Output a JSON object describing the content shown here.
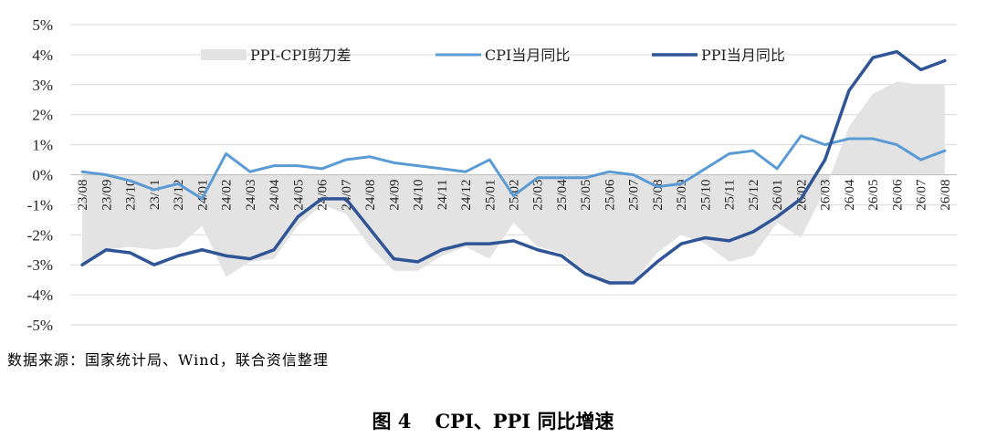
{
  "chart_data": {
    "type": "line",
    "categories": [
      "23/08",
      "23/09",
      "23/10",
      "23/11",
      "23/12",
      "24/01",
      "24/02",
      "24/03",
      "24/04",
      "24/05",
      "24/06",
      "24/07",
      "24/08",
      "24/09",
      "24/10",
      "24/11",
      "24/12",
      "25/01",
      "25/02",
      "25/03",
      "25/04",
      "25/05",
      "25/06",
      "25/07",
      "25/08",
      "25/09",
      "25/10",
      "25/11",
      "25/12",
      "26/01",
      "26/02",
      "26/03",
      "26/04",
      "26/05",
      "26/06",
      "26/07",
      "26/08"
    ],
    "series": [
      {
        "name": "PPI-CPI剪刀差",
        "kind": "area",
        "color": "#e3e3e3",
        "values": [
          -3.1,
          -2.5,
          -2.4,
          -2.5,
          -2.4,
          -1.7,
          -3.4,
          -2.9,
          -2.8,
          -1.7,
          -1.0,
          -1.3,
          -2.4,
          -3.2,
          -3.2,
          -2.7,
          -2.4,
          -2.8,
          -1.6,
          -2.4,
          -2.6,
          -3.2,
          -3.7,
          -3.6,
          -2.6,
          -2.0,
          -2.3,
          -2.9,
          -2.7,
          -1.6,
          -2.1,
          -0.5,
          1.6,
          2.7,
          3.1,
          3.0,
          3.0
        ]
      },
      {
        "name": "CPI当月同比",
        "kind": "line",
        "color": "#5b9bd5",
        "values": [
          0.1,
          0.0,
          -0.2,
          -0.5,
          -0.3,
          -0.8,
          0.7,
          0.1,
          0.3,
          0.3,
          0.2,
          0.5,
          0.6,
          0.4,
          0.3,
          0.2,
          0.1,
          0.5,
          -0.7,
          -0.1,
          -0.1,
          -0.1,
          0.1,
          0.0,
          -0.4,
          -0.3,
          0.2,
          0.7,
          0.8,
          0.2,
          1.3,
          1.0,
          1.2,
          1.2,
          1.0,
          0.5,
          0.8
        ]
      },
      {
        "name": "PPI当月同比",
        "kind": "line",
        "color": "#2f5597",
        "values": [
          -3.0,
          -2.5,
          -2.6,
          -3.0,
          -2.7,
          -2.5,
          -2.7,
          -2.8,
          -2.5,
          -1.4,
          -0.8,
          -0.8,
          -1.8,
          -2.8,
          -2.9,
          -2.5,
          -2.3,
          -2.3,
          -2.2,
          -2.5,
          -2.7,
          -3.3,
          -3.6,
          -3.6,
          -2.9,
          -2.3,
          -2.1,
          -2.2,
          -1.9,
          -1.4,
          -0.8,
          0.5,
          2.8,
          3.9,
          4.1,
          3.5,
          3.8
        ]
      }
    ],
    "y_ticks": [
      "5%",
      "4%",
      "3%",
      "2%",
      "1%",
      "0%",
      "-1%",
      "-2%",
      "-3%",
      "-4%",
      "-5%"
    ],
    "ylim": [
      -5,
      5
    ],
    "grid": true,
    "legend_position": "top"
  },
  "source_text": "数据来源：国家统计局、Wind，联合资信整理",
  "caption": {
    "number": "图 4",
    "title": "CPI、PPI 同比增速"
  }
}
